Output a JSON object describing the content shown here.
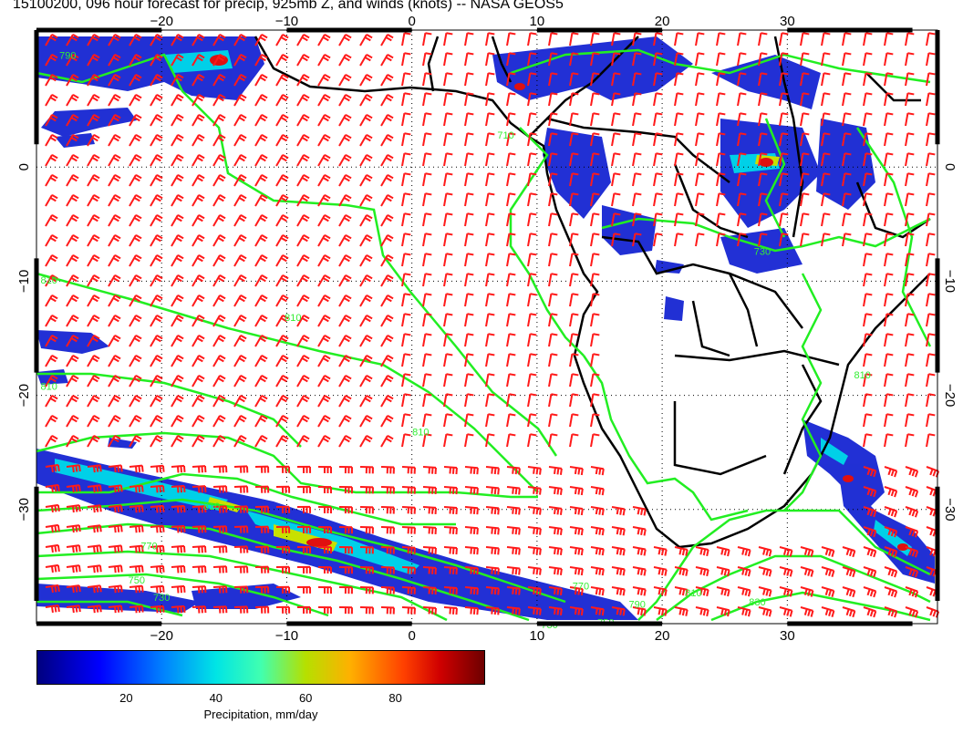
{
  "title": "15100200, 096 hour forecast for precip, 925mb Z, and winds (knots) -- NASA GEOS5",
  "map": {
    "lon_range": [
      -30,
      42
    ],
    "lat_range": [
      -40,
      12
    ],
    "lon_ticks": [
      -20,
      -10,
      0,
      10,
      20,
      30
    ],
    "lat_ticks": [
      0,
      -10,
      -20,
      -30
    ],
    "lon_tick_labels": [
      "−20",
      "−10",
      "0",
      "10",
      "20",
      "30"
    ],
    "lat_tick_labels": [
      "0",
      "−10",
      "−20",
      "−30"
    ],
    "gridlines": "dotted",
    "land_color": "#ffffff",
    "ocean_color": "#ffffff",
    "coastline_color": "#000000",
    "contour_color": "#22ee22",
    "wind_barb_color": "#ff1a1a"
  },
  "contour_labels": [
    {
      "text": "790",
      "lon": -27.5,
      "lat": 9.5
    },
    {
      "text": "810",
      "lon": -29,
      "lat": -10.2
    },
    {
      "text": "810",
      "lon": -29,
      "lat": -19.5
    },
    {
      "text": "810",
      "lon": -16,
      "lat": -30
    },
    {
      "text": "810",
      "lon": 0.7,
      "lat": -23.5
    },
    {
      "text": "810",
      "lon": -9.5,
      "lat": -13.5
    },
    {
      "text": "770",
      "lon": -21,
      "lat": -33.5
    },
    {
      "text": "750",
      "lon": -22,
      "lat": -36.5
    },
    {
      "text": "730",
      "lon": -20,
      "lat": -38
    },
    {
      "text": "770",
      "lon": 13.5,
      "lat": -37
    },
    {
      "text": "790",
      "lon": 18,
      "lat": -38.6
    },
    {
      "text": "810",
      "lon": 22.5,
      "lat": -37.6
    },
    {
      "text": "830",
      "lon": 27.6,
      "lat": -38.4
    },
    {
      "text": "750",
      "lon": 15.5,
      "lat": -40.2
    },
    {
      "text": "730",
      "lon": 11,
      "lat": -40.4
    },
    {
      "text": "710",
      "lon": 7.5,
      "lat": 2.5
    },
    {
      "text": "730",
      "lon": 28,
      "lat": -7.7
    },
    {
      "text": "810",
      "lon": 36,
      "lat": -18.5
    }
  ],
  "colorbar": {
    "title": "Precipitation, mm/day",
    "ticks": [
      "20",
      "40",
      "60",
      "80"
    ],
    "range": [
      0,
      100
    ],
    "colors": [
      "#00007f",
      "#0000ff",
      "#0080ff",
      "#00e5e5",
      "#40ffb0",
      "#b5e000",
      "#ffb000",
      "#ff4000",
      "#d00000",
      "#6e0000"
    ]
  }
}
